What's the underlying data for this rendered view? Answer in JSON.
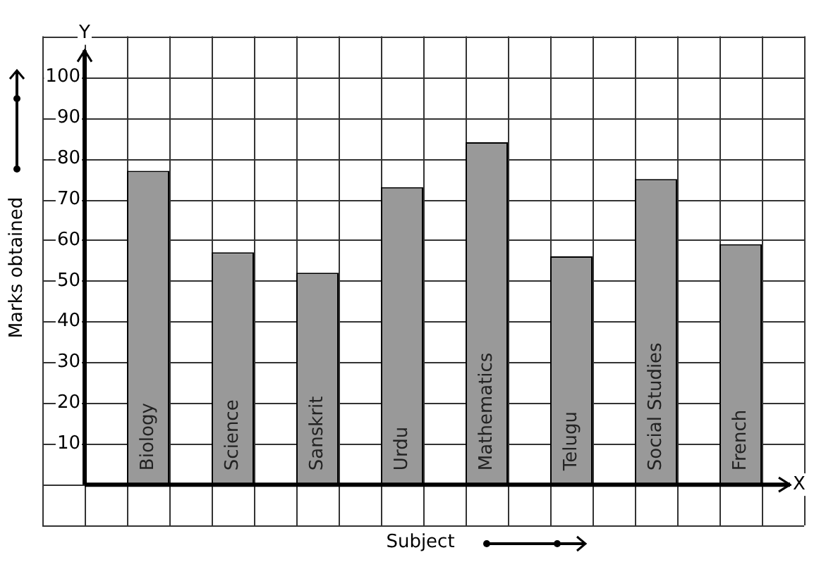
{
  "chart_data": {
    "type": "bar",
    "xlabel": "Subject",
    "ylabel": "Marks obtained",
    "categories": [
      "Biology",
      "Science",
      "Sanskrit",
      "Urdu",
      "Mathematics",
      "Telugu",
      "Social Studies",
      "French"
    ],
    "values": [
      77,
      57,
      52,
      73,
      84,
      56,
      75,
      59
    ],
    "color": "#999999",
    "ylim": [
      -10,
      110
    ],
    "yticks": [
      10,
      20,
      30,
      40,
      50,
      60,
      70,
      80,
      90,
      100
    ],
    "grid": true,
    "annotations": [
      "X",
      "Y"
    ]
  }
}
